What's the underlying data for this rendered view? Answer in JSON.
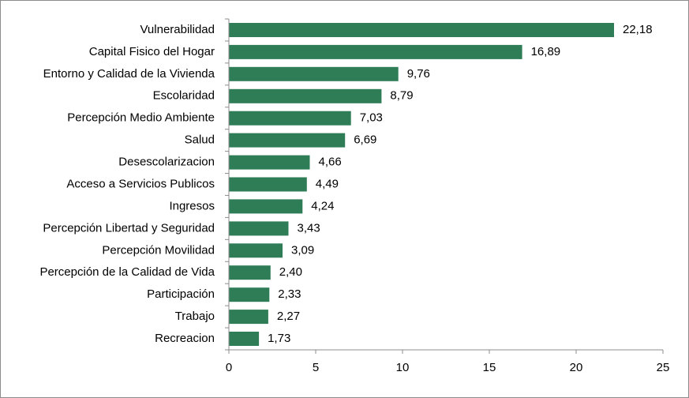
{
  "chart_data": {
    "type": "bar",
    "orientation": "horizontal",
    "categories": [
      "Vulnerabilidad",
      "Capital Fisico del Hogar",
      "Entorno y Calidad de la Vivienda",
      "Escolaridad",
      "Percepción Medio Ambiente",
      "Salud",
      "Desescolarizacion",
      "Acceso a Servicios Publicos",
      "Ingresos",
      "Percepción Libertad y Seguridad",
      "Percepción Movilidad",
      "Percepción de la Calidad de Vida",
      "Participación",
      "Trabajo",
      "Recreacion"
    ],
    "values": [
      22.18,
      16.89,
      9.76,
      8.79,
      7.03,
      6.69,
      4.66,
      4.49,
      4.24,
      3.43,
      3.09,
      2.4,
      2.33,
      2.27,
      1.73
    ],
    "value_labels": [
      "22,18",
      "16,89",
      "9,76",
      "8,79",
      "7,03",
      "6,69",
      "4,66",
      "4,49",
      "4,24",
      "3,43",
      "3,09",
      "2,40",
      "2,33",
      "2,27",
      "1,73"
    ],
    "xlim": [
      0,
      25
    ],
    "xticks": [
      0,
      5,
      10,
      15,
      20,
      25
    ],
    "xtick_labels": [
      "0",
      "5",
      "10",
      "15",
      "20",
      "25"
    ],
    "title": "",
    "xlabel": "",
    "ylabel": "",
    "grid": false,
    "legend": "none",
    "bar_color": "#2e7d57"
  }
}
